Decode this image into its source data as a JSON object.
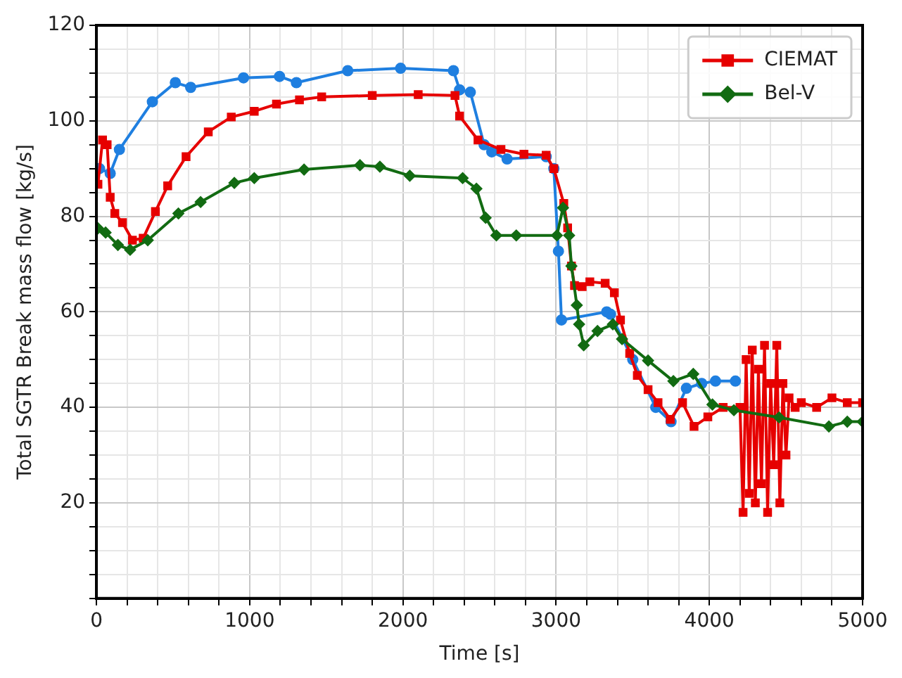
{
  "chart_data": {
    "type": "line",
    "xlabel": "Time [s]",
    "ylabel": "Total SGTR Break mass flow [kg/s]",
    "xlim": [
      0,
      5000
    ],
    "ylim": [
      0,
      120
    ],
    "xticks": [
      0,
      {
        "value": 200,
        "label": null
      },
      {
        "value": 400,
        "label": null
      },
      {
        "value": 600,
        "label": null
      },
      {
        "value": 800,
        "label": null
      },
      1000,
      {
        "value": 1200,
        "label": null
      },
      {
        "value": 1400,
        "label": null
      },
      {
        "value": 1600,
        "label": null
      },
      {
        "value": 1800,
        "label": null
      },
      2000,
      {
        "value": 2200,
        "label": null
      },
      {
        "value": 2400,
        "label": null
      },
      {
        "value": 2600,
        "label": null
      },
      {
        "value": 2800,
        "label": null
      },
      3000,
      {
        "value": 3200,
        "label": null
      },
      {
        "value": 3400,
        "label": null
      },
      {
        "value": 3600,
        "label": null
      },
      {
        "value": 3800,
        "label": null
      },
      4000,
      {
        "value": 4200,
        "label": null
      },
      {
        "value": 4400,
        "label": null
      },
      {
        "value": 4600,
        "label": null
      },
      {
        "value": 4800,
        "label": null
      },
      5000
    ],
    "yticks": [
      {
        "value": 0,
        "label": null
      },
      {
        "value": 5,
        "label": null
      },
      {
        "value": 10,
        "label": null
      },
      {
        "value": 15,
        "label": null
      },
      20,
      {
        "value": 25,
        "label": null
      },
      {
        "value": 30,
        "label": null
      },
      {
        "value": 35,
        "label": null
      },
      40,
      {
        "value": 45,
        "label": null
      },
      {
        "value": 50,
        "label": null
      },
      {
        "value": 55,
        "label": null
      },
      60,
      {
        "value": 65,
        "label": null
      },
      {
        "value": 70,
        "label": null
      },
      {
        "value": 75,
        "label": null
      },
      80,
      {
        "value": 85,
        "label": null
      },
      {
        "value": 90,
        "label": null
      },
      {
        "value": 95,
        "label": null
      },
      100,
      {
        "value": 105,
        "label": null
      },
      {
        "value": 110,
        "label": null
      },
      {
        "value": 115,
        "label": null
      },
      120
    ],
    "grid": true,
    "legend": "top right",
    "line_style": "solid",
    "series": [
      {
        "color": "#1f7fe0",
        "marker": "circle",
        "x": [
          20,
          90,
          150,
          365,
          515,
          615,
          960,
          1195,
          1305,
          1640,
          1985,
          2330,
          2370,
          2440,
          2530,
          2580,
          2680,
          2935,
          2985,
          3015,
          3035,
          3330,
          3355,
          3500,
          3650,
          3750,
          3850,
          3950,
          4040,
          4170
        ],
        "values": [
          90,
          89,
          94,
          104,
          108,
          107,
          109,
          109.3,
          108,
          110.5,
          111,
          110.5,
          106.5,
          106,
          95,
          93.5,
          92,
          92.5,
          90,
          72.7,
          58.3,
          60,
          59.5,
          50,
          40,
          37,
          44,
          45,
          45.5,
          45.5
        ]
      },
      {
        "name": "CIEMAT",
        "color": "#e60000",
        "marker": "square",
        "x": [
          10,
          40,
          70,
          90,
          120,
          170,
          235,
          305,
          385,
          465,
          585,
          730,
          880,
          1030,
          1175,
          1325,
          1470,
          1800,
          2100,
          2340,
          2370,
          2490,
          2640,
          2790,
          2935,
          2985,
          3050,
          3075,
          3100,
          3120,
          3170,
          3220,
          3320,
          3380,
          3420,
          3480,
          3530,
          3600,
          3665,
          3745,
          3825,
          3900,
          3990,
          4090,
          4200,
          4220,
          4240,
          4260,
          4280,
          4300,
          4320,
          4340,
          4360,
          4380,
          4400,
          4420,
          4440,
          4460,
          4480,
          4500,
          4520,
          4560,
          4600,
          4700,
          4800,
          4900,
          5000
        ],
        "values": [
          86.7,
          96,
          95,
          84,
          80.6,
          78.7,
          75,
          75.4,
          81,
          86.4,
          92.5,
          97.7,
          100.8,
          102,
          103.5,
          104.4,
          105,
          105.3,
          105.5,
          105.3,
          101,
          96,
          94,
          93,
          92.8,
          90,
          82.7,
          77.6,
          69.6,
          65.5,
          65.3,
          66.3,
          66,
          64,
          58.3,
          51.3,
          46.7,
          43.7,
          41,
          37.5,
          41,
          36,
          38,
          40,
          40,
          18,
          50,
          22,
          52,
          20,
          48,
          24,
          53,
          18,
          45,
          28,
          53,
          20,
          45,
          30,
          42,
          40,
          41,
          40,
          42,
          41,
          41
        ]
      },
      {
        "name": "Bel-V",
        "color": "#126b12",
        "marker": "diamond",
        "x": [
          10,
          60,
          140,
          220,
          335,
          535,
          680,
          900,
          1030,
          1355,
          1720,
          1850,
          2045,
          2390,
          2480,
          2540,
          2610,
          2740,
          3005,
          3045,
          3085,
          3100,
          3135,
          3150,
          3180,
          3270,
          3370,
          3430,
          3600,
          3765,
          3895,
          4020,
          4160,
          4455,
          4780,
          4900,
          5000
        ],
        "values": [
          77.5,
          76.6,
          74,
          73,
          75,
          80.6,
          83,
          87,
          88,
          89.8,
          90.7,
          90.4,
          88.5,
          88,
          85.8,
          79.7,
          76,
          76,
          76,
          81.8,
          76,
          69.6,
          61.4,
          57.4,
          53,
          56,
          57.4,
          54.3,
          49.8,
          45.5,
          47,
          40.6,
          39.4,
          37.9,
          36,
          37,
          37
        ]
      }
    ]
  }
}
